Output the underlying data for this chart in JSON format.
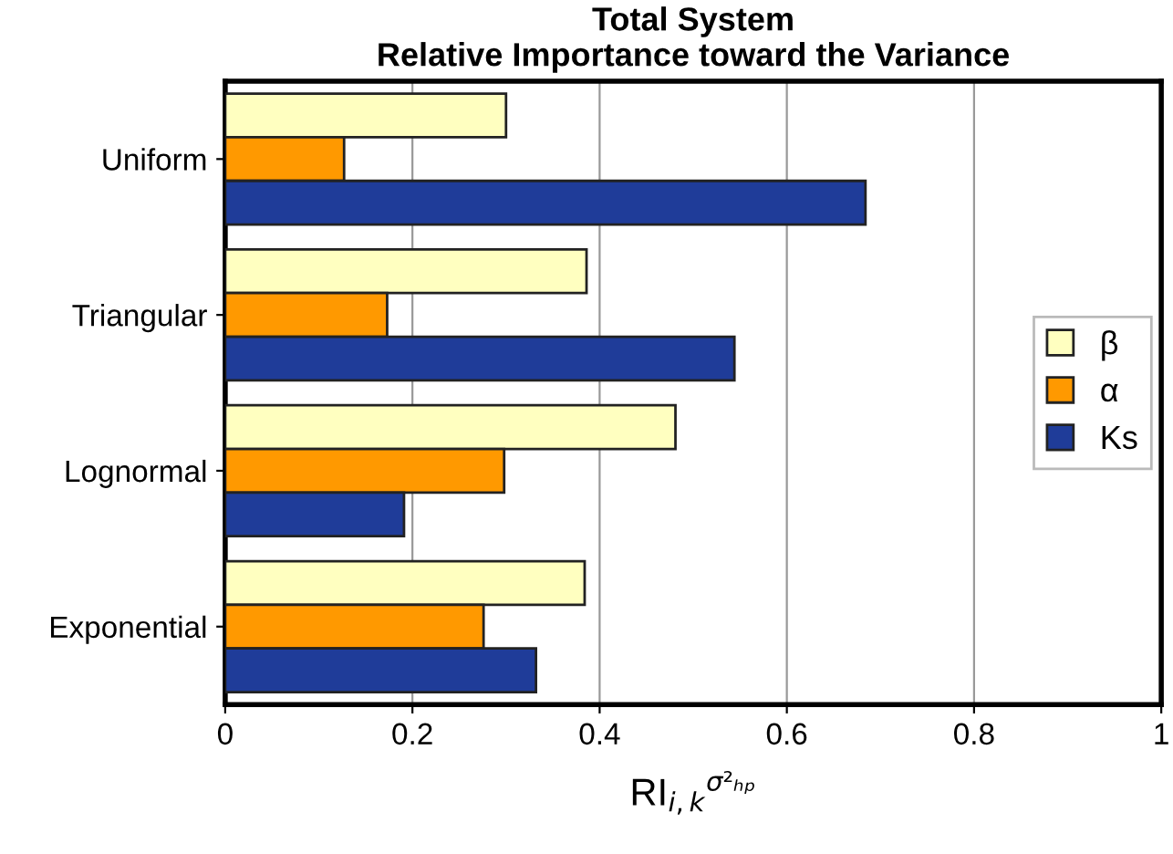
{
  "chart_data": {
    "type": "bar",
    "orientation": "horizontal",
    "title": "Total System\nRelative Importance toward the Variance",
    "xlabel": "RI$_{i,k}$$^{σ²ₕₚ}$",
    "categories": [
      "Uniform",
      "Triangular",
      "Lognormal",
      "Exponential"
    ],
    "series": [
      {
        "name": "β",
        "color": "#ffffc0",
        "values": [
          0.3,
          0.386,
          0.481,
          0.384
        ]
      },
      {
        "name": "α",
        "color": "#ff9900",
        "values": [
          0.127,
          0.173,
          0.298,
          0.276
        ]
      },
      {
        "name": "Ks",
        "color": "#1f3c99",
        "values": [
          0.684,
          0.544,
          0.191,
          0.332
        ]
      }
    ],
    "xlim": [
      0,
      1
    ],
    "xticks": [
      0,
      0.2,
      0.4,
      0.6,
      0.8,
      1
    ],
    "grid": "x",
    "legend": "right"
  }
}
